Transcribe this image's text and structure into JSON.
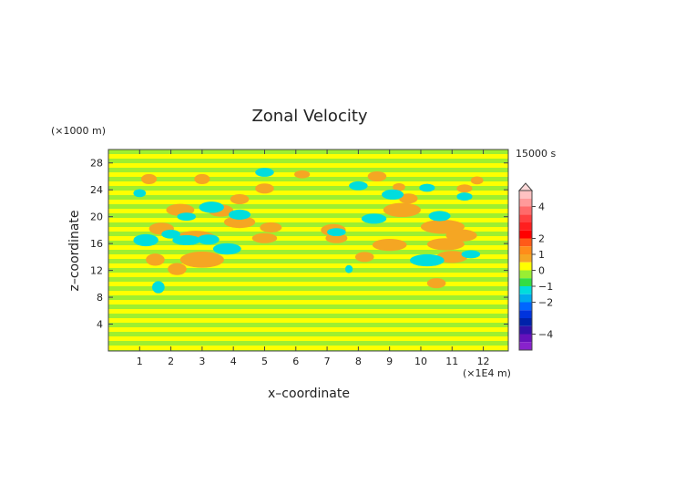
{
  "chart_data": {
    "type": "heatmap",
    "title": "Zonal Velocity",
    "xlabel": "x–coordinate",
    "ylabel": "z–coordinate",
    "x_unit": "(×1E4 m)",
    "y_unit": "(×1000 m)",
    "time_label": "15000 s",
    "xlim": [
      0,
      12.8
    ],
    "ylim": [
      0,
      30
    ],
    "x_ticks": [
      1,
      2,
      3,
      4,
      5,
      6,
      7,
      8,
      9,
      10,
      11,
      12
    ],
    "y_ticks": [
      4,
      8,
      12,
      16,
      20,
      24,
      28
    ],
    "colorbar": {
      "tick_labels": [
        "4",
        "2",
        "1",
        "0",
        "−1",
        "−2",
        "−4"
      ],
      "tick_values": [
        4,
        2,
        1,
        0,
        -1,
        -2,
        -4
      ],
      "levels": [
        {
          "min": 4.5,
          "max": 5.0,
          "color": "#ffc2c2"
        },
        {
          "min": 4.0,
          "max": 4.5,
          "color": "#ff9a9a"
        },
        {
          "min": 3.5,
          "max": 4.0,
          "color": "#ff6a6a"
        },
        {
          "min": 3.0,
          "max": 3.5,
          "color": "#ff4040"
        },
        {
          "min": 2.5,
          "max": 3.0,
          "color": "#ff1f1f"
        },
        {
          "min": 2.0,
          "max": 2.5,
          "color": "#ff0000"
        },
        {
          "min": 1.5,
          "max": 2.0,
          "color": "#ff5a18"
        },
        {
          "min": 1.0,
          "max": 1.5,
          "color": "#ff8c1a"
        },
        {
          "min": 0.5,
          "max": 1.0,
          "color": "#f5a623"
        },
        {
          "min": 0.0,
          "max": 0.5,
          "color": "#ffff00"
        },
        {
          "min": -0.5,
          "max": 0.0,
          "color": "#99ee33"
        },
        {
          "min": -1.0,
          "max": -0.5,
          "color": "#33dd44"
        },
        {
          "min": -1.5,
          "max": -1.0,
          "color": "#00dddd"
        },
        {
          "min": -2.0,
          "max": -1.5,
          "color": "#00aaee"
        },
        {
          "min": -2.5,
          "max": -2.0,
          "color": "#0066ff"
        },
        {
          "min": -3.0,
          "max": -2.5,
          "color": "#0033dd"
        },
        {
          "min": -3.5,
          "max": -3.0,
          "color": "#0022aa"
        },
        {
          "min": -4.0,
          "max": -3.5,
          "color": "#3311aa"
        },
        {
          "min": -4.5,
          "max": -4.0,
          "color": "#6611bb"
        },
        {
          "min": -5.0,
          "max": -4.5,
          "color": "#8822cc"
        }
      ]
    },
    "colors": {
      "zero_positive": "#ffff00",
      "zero_negative": "#99ee33",
      "positive_1": "#f5a623",
      "negative_1": "#00dddd"
    }
  }
}
